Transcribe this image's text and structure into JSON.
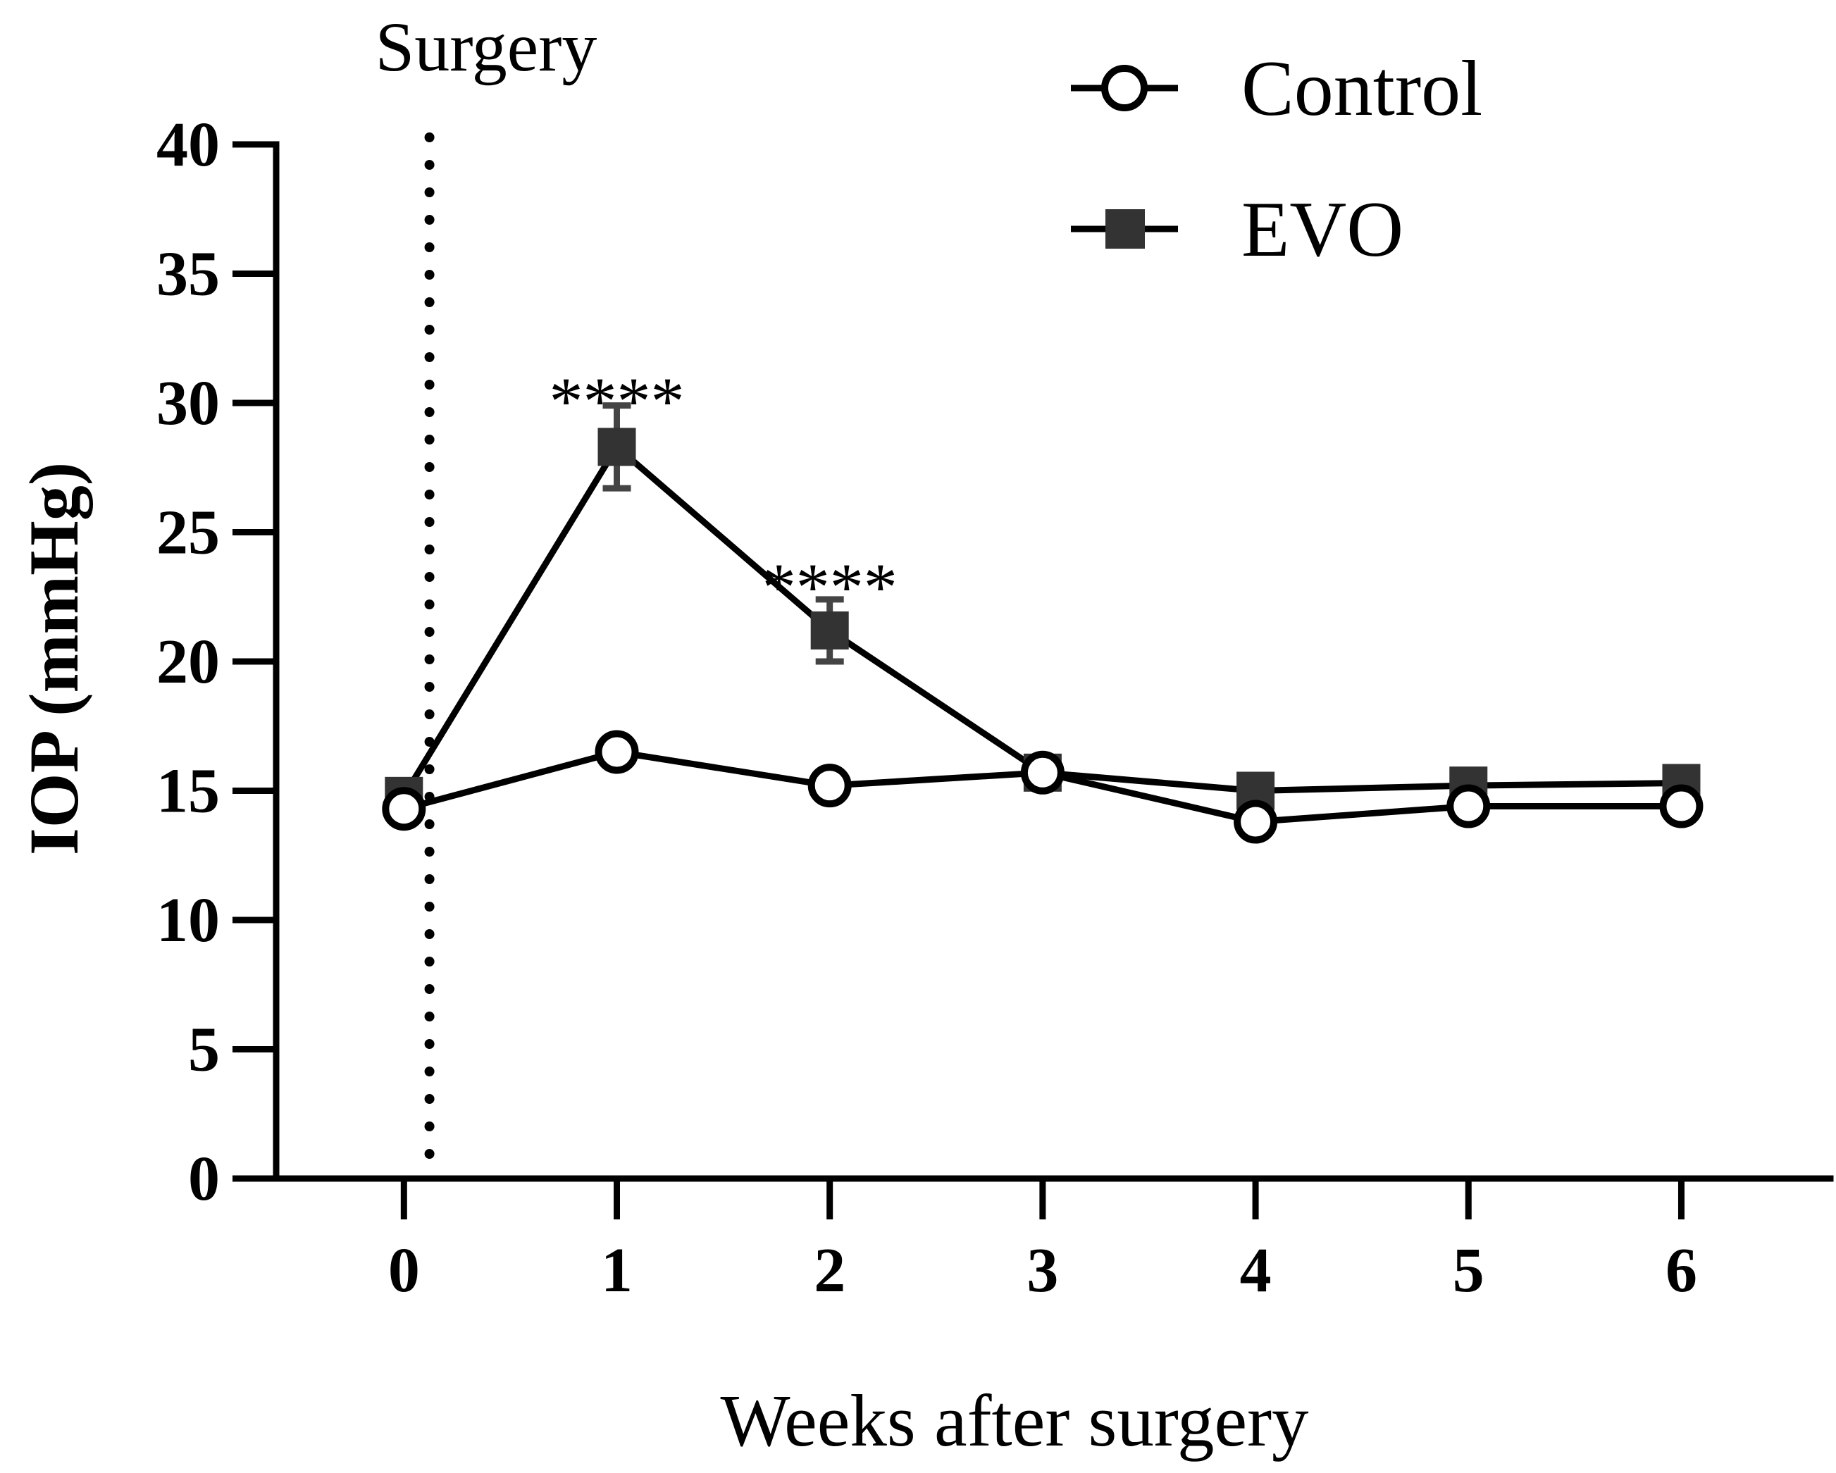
{
  "chart_data": {
    "type": "line",
    "title": "",
    "xlabel": "Weeks after surgery",
    "ylabel": "IOP (mmHg)",
    "ylim": [
      0,
      40
    ],
    "xlim": [
      -0.6,
      6.7
    ],
    "yticks": [
      0,
      5,
      10,
      15,
      20,
      25,
      30,
      35,
      40
    ],
    "xticks": [
      0,
      1,
      2,
      3,
      4,
      5,
      6
    ],
    "grid": false,
    "legend_position": "top-right",
    "reference_line": {
      "x": 0.12,
      "label": "Surgery",
      "style": "dotted"
    },
    "series": [
      {
        "name": "Control",
        "marker": "open-circle",
        "x": [
          0,
          1,
          2,
          3,
          4,
          5,
          6
        ],
        "values": [
          14.3,
          16.5,
          15.2,
          15.7,
          13.8,
          14.4,
          14.4
        ],
        "errors": [
          0.4,
          0.4,
          0.4,
          0.4,
          0.4,
          0.4,
          0.4
        ]
      },
      {
        "name": "EVO",
        "marker": "filled-square",
        "x": [
          0,
          1,
          2,
          3,
          4,
          5,
          6
        ],
        "values": [
          14.8,
          28.3,
          21.2,
          15.7,
          15.0,
          15.2,
          15.3
        ],
        "errors": [
          0.5,
          1.6,
          1.2,
          0.5,
          0.4,
          0.4,
          0.4
        ]
      }
    ],
    "annotations": [
      {
        "x": 1,
        "y": 30.6,
        "text": "****"
      },
      {
        "x": 2,
        "y": 23.4,
        "text": "****"
      }
    ]
  }
}
